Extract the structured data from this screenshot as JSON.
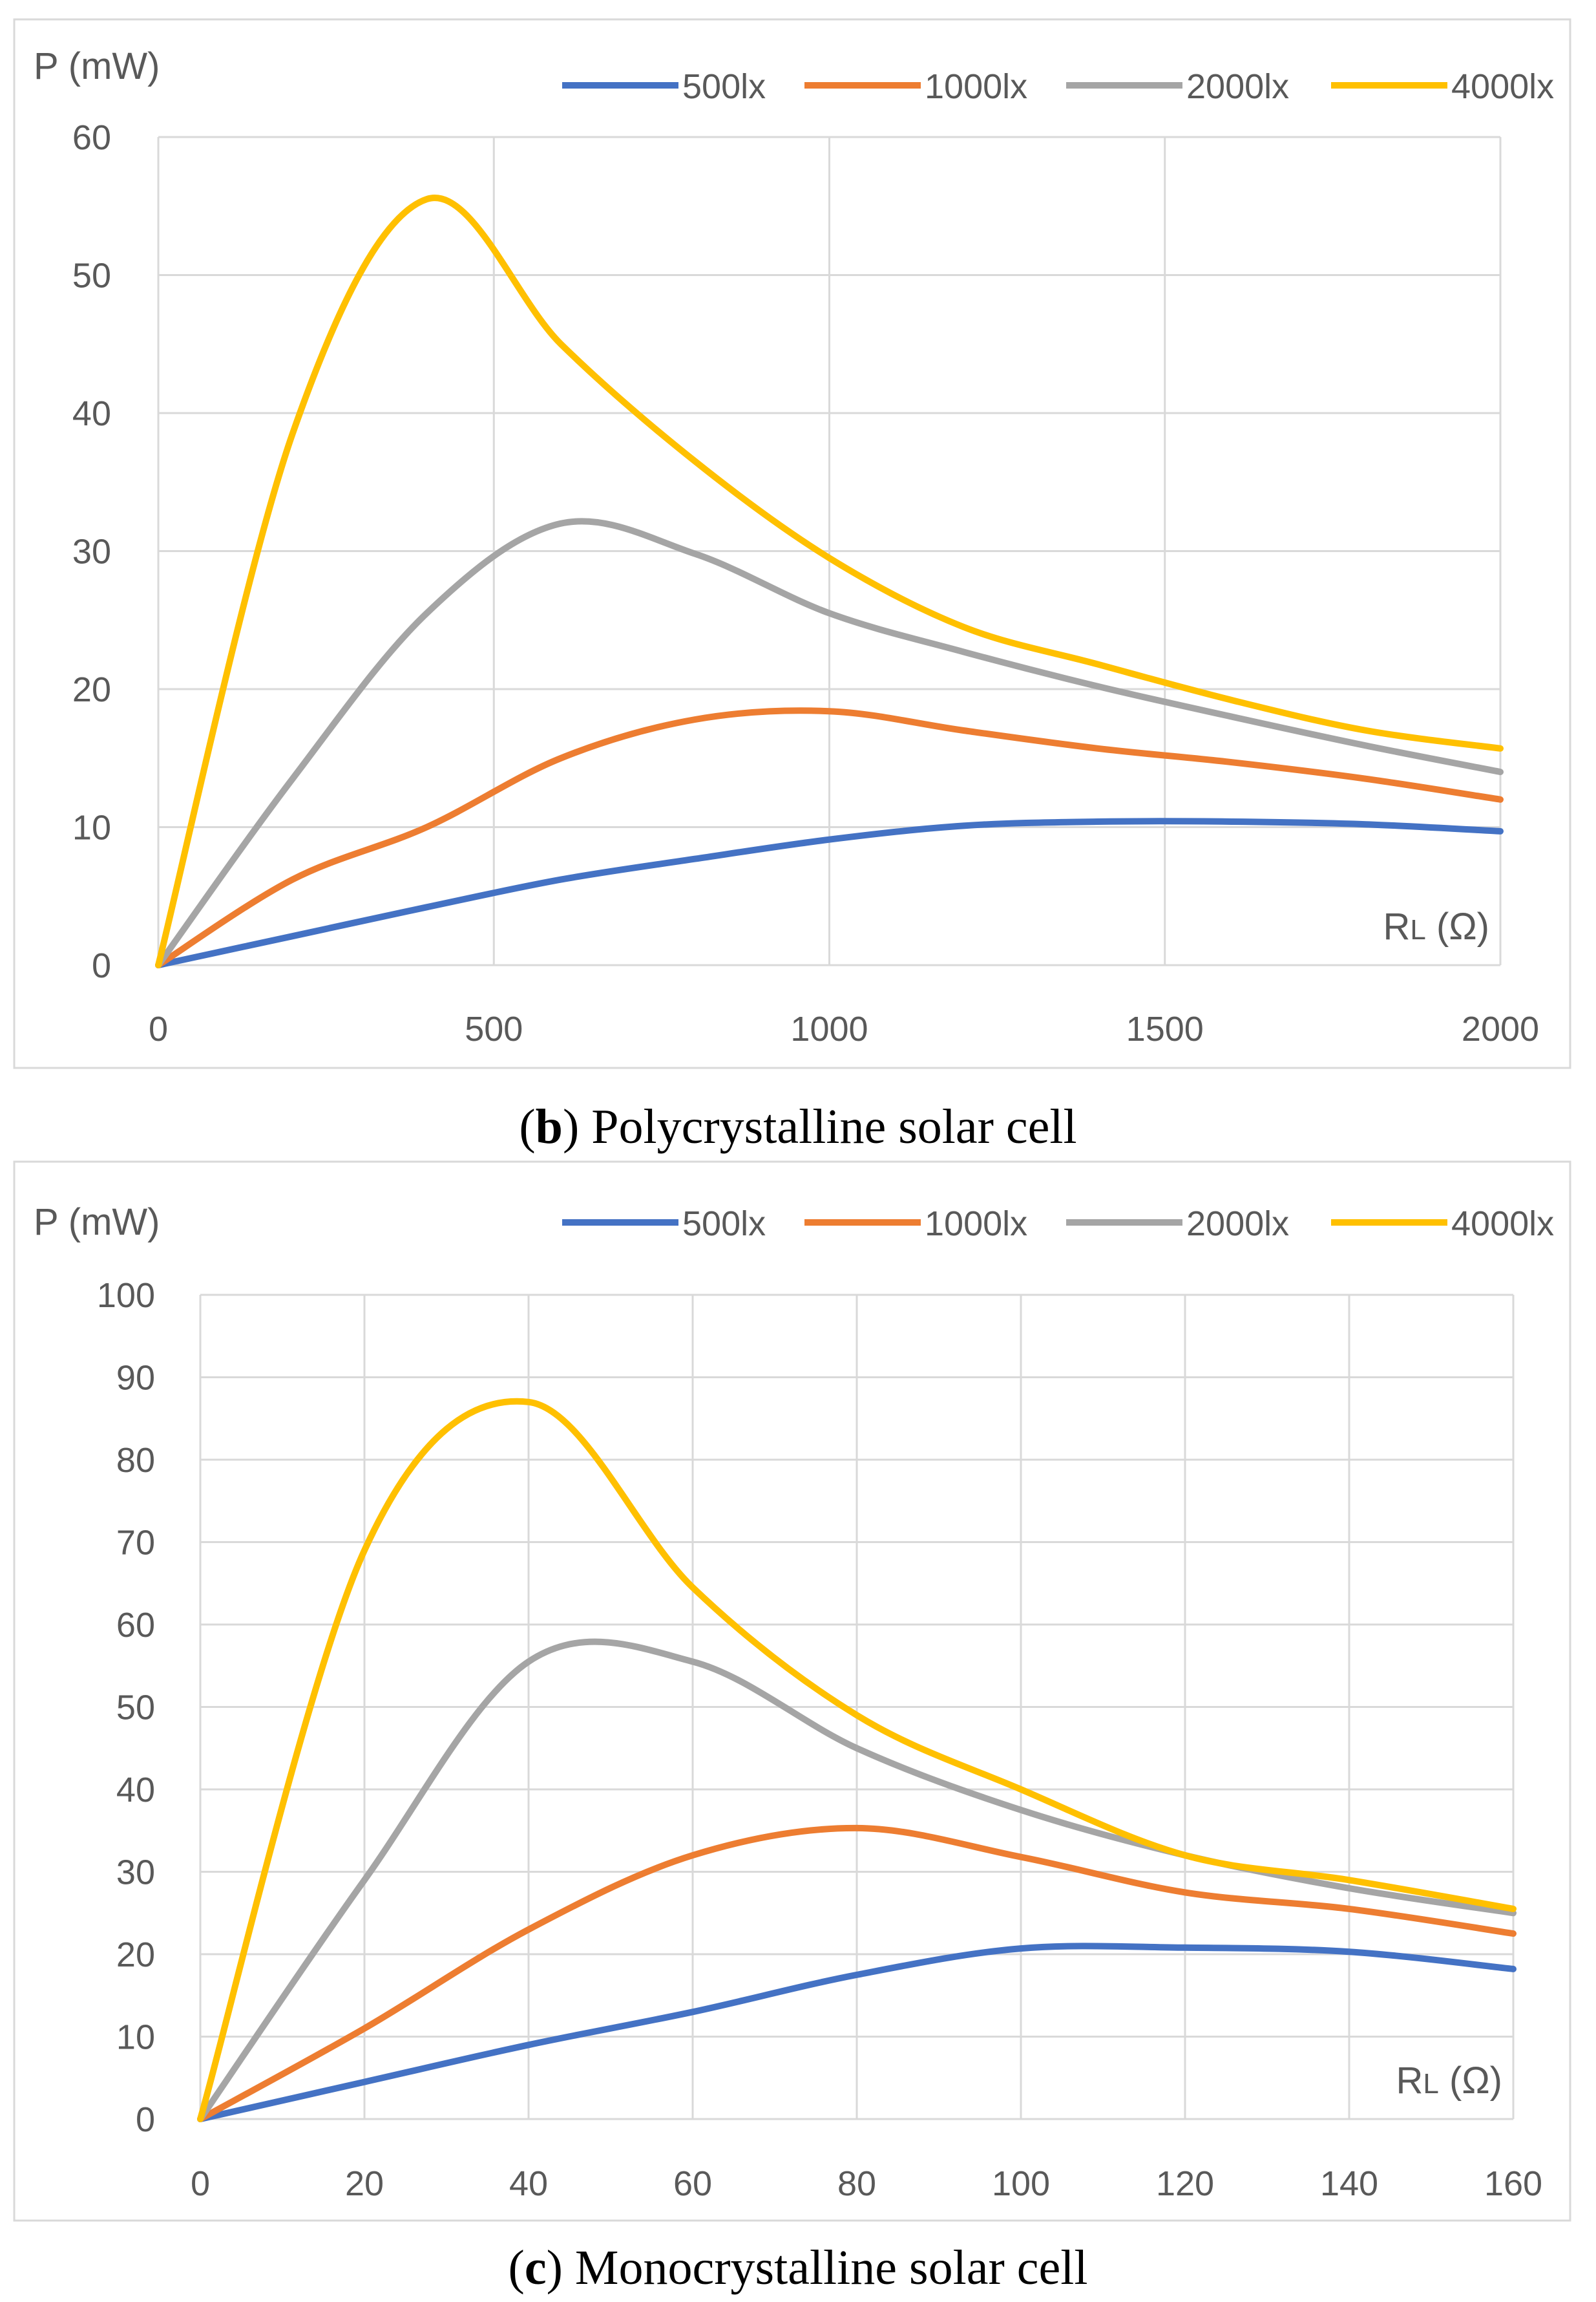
{
  "colors": {
    "s500": "#4472C4",
    "s1000": "#ED7D31",
    "s2000": "#A5A5A5",
    "s4000": "#FFC000",
    "grid": "#D9D9D9",
    "axis_text": "#595959",
    "frame": "#D9D9D9"
  },
  "chart_data": [
    {
      "type": "line",
      "caption_bold": "b",
      "caption_rest": ") Polycrystalline solar cell",
      "caption_open": "(",
      "ylabel": "P (mW)",
      "xlabel_main": "R",
      "xlabel_sub": "L",
      "xlabel_unit": " (Ω)",
      "xlim": [
        0,
        2000
      ],
      "ylim": [
        0,
        60
      ],
      "xticks": [
        0,
        500,
        1000,
        1500,
        2000
      ],
      "xtick_labels": [
        "0",
        "500",
        "1000",
        "1500",
        "2000"
      ],
      "yticks": [
        0,
        10,
        20,
        30,
        40,
        50,
        60
      ],
      "ytick_labels": [
        "0",
        "10",
        "20",
        "30",
        "40",
        "50",
        "60"
      ],
      "grid": true,
      "legend_position": "top-right",
      "series": [
        {
          "name": "500lx",
          "color_key": "s500",
          "x": [
            0,
            200,
            400,
            600,
            800,
            1000,
            1200,
            1400,
            1600,
            1800,
            2000
          ],
          "y": [
            0,
            2.1,
            4.2,
            6.2,
            7.7,
            9.1,
            10.1,
            10.4,
            10.4,
            10.2,
            9.7
          ]
        },
        {
          "name": "1000lx",
          "color_key": "s1000",
          "x": [
            0,
            200,
            400,
            600,
            800,
            1000,
            1200,
            1400,
            1600,
            1800,
            2000
          ],
          "y": [
            0,
            6.2,
            10.0,
            15.0,
            17.8,
            18.4,
            17.0,
            15.7,
            14.7,
            13.5,
            12.0
          ]
        },
        {
          "name": "2000lx",
          "color_key": "s2000",
          "x": [
            0,
            200,
            400,
            600,
            800,
            1000,
            1200,
            1400,
            1600,
            1800,
            2000
          ],
          "y": [
            0,
            13.5,
            25.5,
            32.0,
            29.8,
            25.5,
            22.7,
            20.2,
            18.0,
            15.9,
            14.0
          ]
        },
        {
          "name": "4000lx",
          "color_key": "s4000",
          "x": [
            0,
            200,
            400,
            600,
            800,
            1000,
            1200,
            1400,
            1600,
            1800,
            2000
          ],
          "y": [
            0,
            38.5,
            55.5,
            45.0,
            36.5,
            29.5,
            24.5,
            21.8,
            19.2,
            17.0,
            15.7
          ]
        }
      ]
    },
    {
      "type": "line",
      "caption_bold": "c",
      "caption_rest": ") Monocrystalline solar cell",
      "caption_open": "(",
      "ylabel": "P (mW)",
      "xlabel_main": "R",
      "xlabel_sub": "L",
      "xlabel_unit": " (Ω)",
      "xlim": [
        0,
        160
      ],
      "ylim": [
        0,
        100
      ],
      "xticks": [
        0,
        20,
        40,
        60,
        80,
        100,
        120,
        140,
        160
      ],
      "xtick_labels": [
        "0",
        "20",
        "40",
        "60",
        "80",
        "100",
        "120",
        "140",
        "160"
      ],
      "yticks": [
        0,
        10,
        20,
        30,
        40,
        50,
        60,
        70,
        80,
        90,
        100
      ],
      "ytick_labels": [
        "0",
        "10",
        "20",
        "30",
        "40",
        "50",
        "60",
        "70",
        "80",
        "90",
        "100"
      ],
      "grid": true,
      "legend_position": "top-right",
      "series": [
        {
          "name": "500lx",
          "color_key": "s500",
          "x": [
            0,
            20,
            40,
            60,
            80,
            100,
            120,
            140,
            160
          ],
          "y": [
            0,
            4.5,
            9.0,
            13.0,
            17.5,
            20.7,
            20.8,
            20.3,
            18.2
          ]
        },
        {
          "name": "1000lx",
          "color_key": "s1000",
          "x": [
            0,
            20,
            40,
            60,
            80,
            100,
            120,
            140,
            160
          ],
          "y": [
            0,
            11.0,
            23.0,
            32.0,
            35.3,
            31.8,
            27.5,
            25.5,
            22.5
          ]
        },
        {
          "name": "2000lx",
          "color_key": "s2000",
          "x": [
            0,
            20,
            40,
            60,
            80,
            100,
            120,
            140,
            160
          ],
          "y": [
            0,
            29.0,
            55.5,
            55.5,
            45.0,
            37.5,
            32.0,
            28.0,
            25.0
          ]
        },
        {
          "name": "4000lx",
          "color_key": "s4000",
          "x": [
            0,
            20,
            40,
            60,
            80,
            100,
            120,
            140,
            160
          ],
          "y": [
            0,
            69.0,
            87.0,
            64.5,
            49.0,
            40.0,
            32.0,
            29.0,
            25.5
          ]
        }
      ]
    }
  ]
}
